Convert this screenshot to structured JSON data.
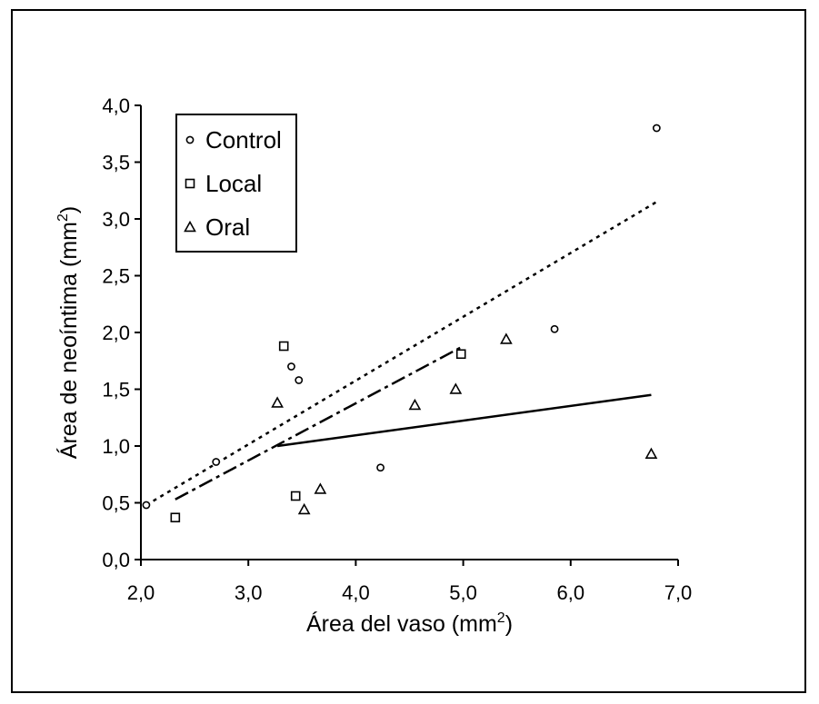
{
  "chart_data": {
    "type": "scatter",
    "xlabel": "Área del vaso (mm",
    "xlabel_sup": "2",
    "xlabel_end": ")",
    "ylabel": "Área de neoíntima (mm",
    "ylabel_sup": "2",
    "ylabel_end": ")",
    "xlim": [
      2.0,
      7.0
    ],
    "ylim": [
      0.0,
      4.0
    ],
    "x_ticks": [
      "2,0",
      "3,0",
      "4,0",
      "5,0",
      "6,0",
      "7,0"
    ],
    "y_ticks": [
      "0,0",
      "0,5",
      "1,0",
      "1,5",
      "2,0",
      "2,5",
      "3,0",
      "3,5",
      "4,0"
    ],
    "grid": false,
    "legend_position": "top-left",
    "series": [
      {
        "name": "Control",
        "marker": "circle",
        "points": [
          [
            2.05,
            0.48
          ],
          [
            2.7,
            0.86
          ],
          [
            3.4,
            1.7
          ],
          [
            3.47,
            1.58
          ],
          [
            4.23,
            0.81
          ],
          [
            5.85,
            2.03
          ],
          [
            6.8,
            3.8
          ]
        ],
        "trend": {
          "style": "dotted",
          "x": [
            2.05,
            6.8
          ],
          "y": [
            0.48,
            3.15
          ]
        }
      },
      {
        "name": "Local",
        "marker": "square",
        "points": [
          [
            2.32,
            0.37
          ],
          [
            3.33,
            1.88
          ],
          [
            3.44,
            0.56
          ],
          [
            4.98,
            1.81
          ]
        ],
        "trend": {
          "style": "dash-dot",
          "x": [
            2.32,
            4.98
          ],
          "y": [
            0.53,
            1.87
          ]
        }
      },
      {
        "name": "Oral",
        "marker": "triangle",
        "points": [
          [
            3.27,
            1.38
          ],
          [
            3.52,
            0.44
          ],
          [
            3.67,
            0.62
          ],
          [
            4.55,
            1.36
          ],
          [
            4.93,
            1.5
          ],
          [
            5.4,
            1.94
          ],
          [
            6.75,
            0.93
          ]
        ],
        "trend": {
          "style": "solid",
          "x": [
            3.27,
            6.75
          ],
          "y": [
            1.0,
            1.45
          ]
        }
      }
    ]
  },
  "colors": {
    "ink": "#000000",
    "background": "#ffffff"
  }
}
